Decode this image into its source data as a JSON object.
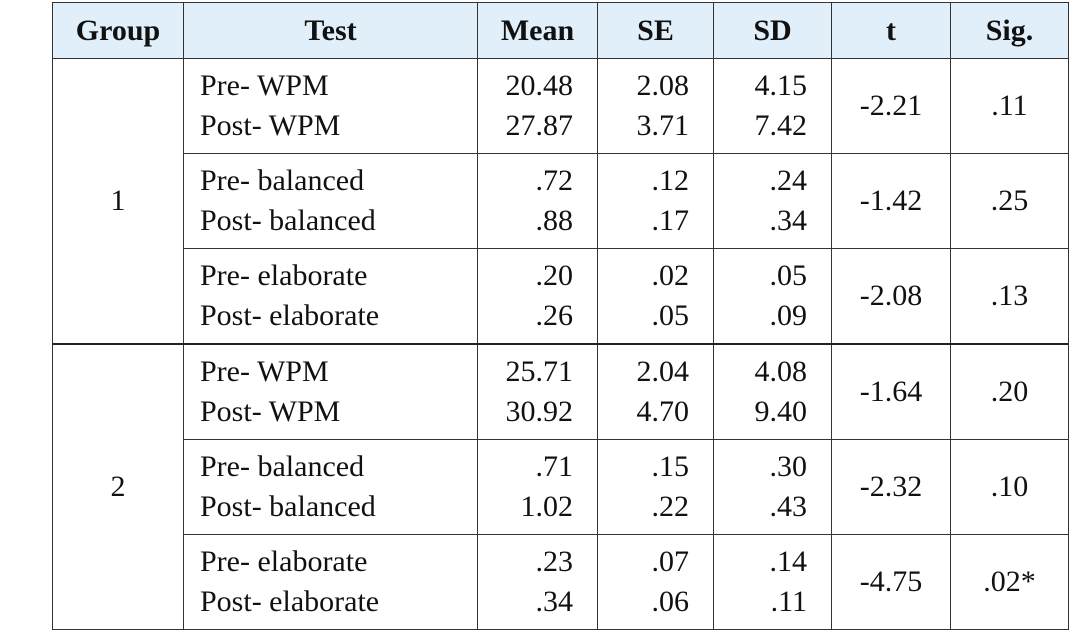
{
  "table": {
    "header": [
      "Group",
      "Test",
      "Mean",
      "SE",
      "SD",
      "t",
      "Sig."
    ],
    "groups": [
      {
        "group": "1",
        "rows": [
          {
            "test": [
              "Pre- WPM",
              "Post- WPM"
            ],
            "mean": [
              "20.48",
              "27.87"
            ],
            "se": [
              "2.08",
              "3.71"
            ],
            "sd": [
              "4.15",
              "7.42"
            ],
            "t": "-2.21",
            "sig": ".11"
          },
          {
            "test": [
              "Pre- balanced",
              "Post- balanced"
            ],
            "mean": [
              ".72",
              ".88"
            ],
            "se": [
              ".12",
              ".17"
            ],
            "sd": [
              ".24",
              ".34"
            ],
            "t": "-1.42",
            "sig": ".25"
          },
          {
            "test": [
              "Pre- elaborate",
              "Post- elaborate"
            ],
            "mean": [
              ".20",
              ".26"
            ],
            "se": [
              ".02",
              ".05"
            ],
            "sd": [
              ".05",
              ".09"
            ],
            "t": "-2.08",
            "sig": ".13"
          }
        ]
      },
      {
        "group": "2",
        "rows": [
          {
            "test": [
              "Pre- WPM",
              "Post- WPM"
            ],
            "mean": [
              "25.71",
              "30.92"
            ],
            "se": [
              "2.04",
              "4.70"
            ],
            "sd": [
              "4.08",
              "9.40"
            ],
            "t": "-1.64",
            "sig": ".20"
          },
          {
            "test": [
              "Pre- balanced",
              "Post- balanced"
            ],
            "mean": [
              ".71",
              "1.02"
            ],
            "se": [
              ".15",
              ".22"
            ],
            "sd": [
              ".30",
              ".43"
            ],
            "t": "-2.32",
            "sig": ".10"
          },
          {
            "test": [
              "Pre- elaborate",
              "Post- elaborate"
            ],
            "mean": [
              ".23",
              ".34"
            ],
            "se": [
              ".07",
              ".06"
            ],
            "sd": [
              ".14",
              ".11"
            ],
            "t": "-4.75",
            "sig": ".02*"
          }
        ]
      }
    ]
  }
}
